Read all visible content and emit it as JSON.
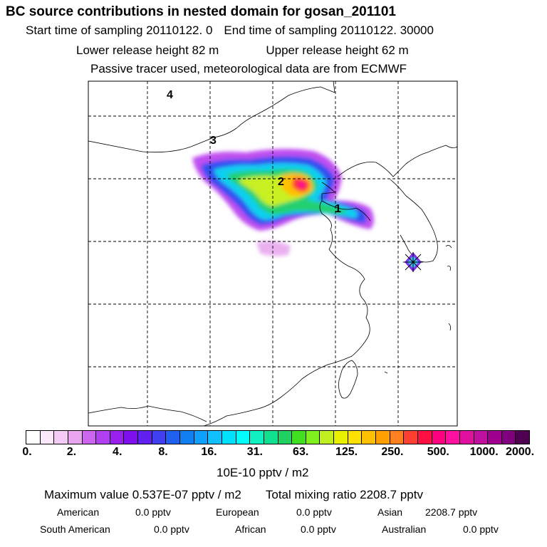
{
  "title": "BC  source contributions in nested domain for gosan_201101",
  "sampling": {
    "start": "Start time of sampling 20110122.     0",
    "end": "End time of sampling 20110122. 30000"
  },
  "release": {
    "lower": "Lower release height   82 m",
    "upper": "Upper release height   62 m"
  },
  "tracer_note": "Passive tracer used, meteorological data are from ECMWF",
  "map": {
    "labels": [
      "1",
      "2",
      "3",
      "4"
    ]
  },
  "colorbar": {
    "tick_labels": [
      "0.",
      "2.",
      "4.",
      "8.",
      "16.",
      "31.",
      "63.",
      "125.",
      "250.",
      "500.",
      "1000.",
      "2000."
    ],
    "colors": [
      "#ffffff",
      "#fbe8fb",
      "#f4cbf4",
      "#e9a6ef",
      "#cc66ee",
      "#b040f0",
      "#9a20ee",
      "#7f10ee",
      "#6020f0",
      "#4040f0",
      "#2060f0",
      "#1080f0",
      "#10a0ff",
      "#10c0ff",
      "#00e0ff",
      "#00ffff",
      "#10f0c0",
      "#10e090",
      "#20d060",
      "#40e020",
      "#80ef20",
      "#c0f020",
      "#e8f000",
      "#ffe000",
      "#ffc000",
      "#ffa000",
      "#ff8020",
      "#ff4030",
      "#ff1040",
      "#ff0080",
      "#ff10a0",
      "#e010a0",
      "#c010a0",
      "#a00090",
      "#800080",
      "#500050"
    ],
    "units": "10E-10 pptv / m2"
  },
  "summary": {
    "maximum": "Maximum value  0.537E-07 pptv / m2",
    "total": "Total mixing ratio     2208.7 pptv"
  },
  "regions": [
    {
      "name": "American",
      "value": "0.0 pptv"
    },
    {
      "name": "European",
      "value": "0.0 pptv"
    },
    {
      "name": "Asian",
      "value": "2208.7 pptv"
    },
    {
      "name": "South American",
      "value": "0.0 pptv"
    },
    {
      "name": "African",
      "value": "0.0 pptv"
    },
    {
      "name": "Australian",
      "value": "0.0 pptv"
    }
  ]
}
